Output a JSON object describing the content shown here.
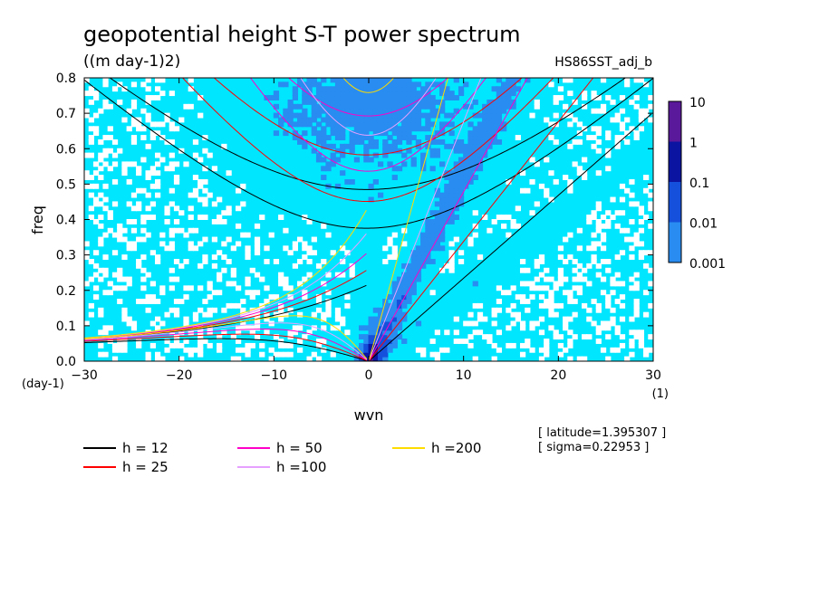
{
  "chart_data": {
    "type": "heatmap",
    "title": "geopotential height S-T power spectrum",
    "subtitle": "((m day-1)2)",
    "dataset_label": "HS86SST_adj_b",
    "xlabel": "wvn",
    "ylabel": "freq",
    "x_unit": "(1)",
    "y_unit": "(day-1)",
    "xlim": [
      -30,
      30
    ],
    "ylim": [
      0,
      0.8
    ],
    "x_ticks": [
      -30,
      -20,
      -10,
      0,
      10,
      20,
      30
    ],
    "y_ticks": [
      0.0,
      0.1,
      0.2,
      0.3,
      0.4,
      0.5,
      0.6,
      0.7,
      0.8
    ],
    "x_tick_labels": [
      "−30",
      "−20",
      "−10",
      "0",
      "10",
      "20",
      "30"
    ],
    "y_tick_labels": [
      "0.0",
      "0.1",
      "0.2",
      "0.3",
      "0.4",
      "0.5",
      "0.6",
      "0.7",
      "0.8"
    ],
    "log_scale_colors": true,
    "colorbar": {
      "labels": [
        "10",
        "1",
        "0.1",
        "0.01",
        "0.001"
      ],
      "colors": [
        "#5a189a",
        "#0a14a0",
        "#1450dc",
        "#288cf0",
        "#00e6ff"
      ]
    },
    "background_color": "#00e6ff",
    "info": {
      "latitude": "[ latitude=1.395307 ]",
      "sigma": "[ sigma=0.22953 ]"
    },
    "dispersion_curves": [
      {
        "label": "h = 12",
        "h": 12,
        "color": "#000000"
      },
      {
        "label": "h = 25",
        "h": 25,
        "color": "#ff0000"
      },
      {
        "label": "h = 50",
        "h": 50,
        "color": "#ff00c8"
      },
      {
        "label": "h =100",
        "h": 100,
        "color": "#e6a0ff"
      },
      {
        "label": "h =200",
        "h": 200,
        "color": "#ffdc00"
      }
    ]
  }
}
